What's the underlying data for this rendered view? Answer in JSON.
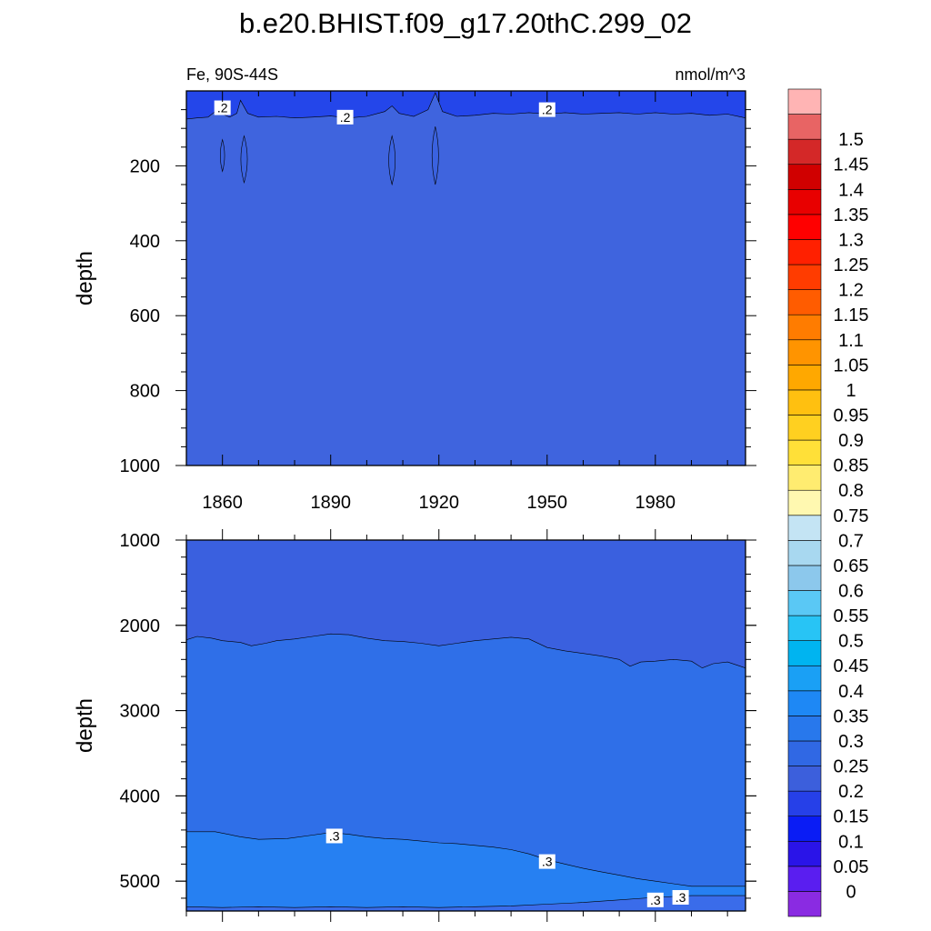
{
  "title": "b.e20.BHIST.f09_g17.20thC.299_02",
  "chart_data": [
    {
      "type": "heatmap",
      "plot": "upper",
      "left_label": "Fe, 90S-44S",
      "right_label": "nmol/m^3",
      "ylabel": "depth",
      "xlim": [
        1850,
        2005
      ],
      "ylim": [
        1000,
        0
      ],
      "yticks": [
        "200",
        "400",
        "600",
        "800",
        "1000"
      ],
      "xticks": [
        "1860",
        "1890",
        "1920",
        "1950",
        "1980"
      ],
      "surface_band": {
        "level": 0.2,
        "depth_profile": [
          {
            "x": 1850,
            "y": 75
          },
          {
            "x": 1853,
            "y": 72
          },
          {
            "x": 1856,
            "y": 70
          },
          {
            "x": 1858,
            "y": 55
          },
          {
            "x": 1860,
            "y": 62
          },
          {
            "x": 1862,
            "y": 70
          },
          {
            "x": 1864,
            "y": 60
          },
          {
            "x": 1865,
            "y": 25
          },
          {
            "x": 1867,
            "y": 60
          },
          {
            "x": 1870,
            "y": 70
          },
          {
            "x": 1875,
            "y": 68
          },
          {
            "x": 1880,
            "y": 72
          },
          {
            "x": 1885,
            "y": 70
          },
          {
            "x": 1890,
            "y": 67
          },
          {
            "x": 1895,
            "y": 72
          },
          {
            "x": 1900,
            "y": 68
          },
          {
            "x": 1905,
            "y": 55
          },
          {
            "x": 1907,
            "y": 40
          },
          {
            "x": 1909,
            "y": 60
          },
          {
            "x": 1913,
            "y": 68
          },
          {
            "x": 1917,
            "y": 50
          },
          {
            "x": 1919,
            "y": 5
          },
          {
            "x": 1921,
            "y": 55
          },
          {
            "x": 1925,
            "y": 68
          },
          {
            "x": 1930,
            "y": 65
          },
          {
            "x": 1935,
            "y": 60
          },
          {
            "x": 1940,
            "y": 62
          },
          {
            "x": 1945,
            "y": 58
          },
          {
            "x": 1950,
            "y": 62
          },
          {
            "x": 1955,
            "y": 58
          },
          {
            "x": 1960,
            "y": 62
          },
          {
            "x": 1965,
            "y": 60
          },
          {
            "x": 1970,
            "y": 58
          },
          {
            "x": 1975,
            "y": 62
          },
          {
            "x": 1980,
            "y": 58
          },
          {
            "x": 1985,
            "y": 62
          },
          {
            "x": 1990,
            "y": 60
          },
          {
            "x": 1995,
            "y": 65
          },
          {
            "x": 2000,
            "y": 62
          },
          {
            "x": 2005,
            "y": 72
          }
        ]
      },
      "lenses": [
        {
          "x": 1860,
          "top": 130,
          "bottom": 215,
          "halfwidth": 0.6
        },
        {
          "x": 1866,
          "top": 120,
          "bottom": 245,
          "halfwidth": 0.9
        },
        {
          "x": 1907,
          "top": 120,
          "bottom": 250,
          "halfwidth": 0.9
        },
        {
          "x": 1919,
          "top": 95,
          "bottom": 250,
          "halfwidth": 0.9
        }
      ],
      "labels": [
        {
          "text": ".2",
          "x": 1860,
          "y": 45
        },
        {
          "text": ".2",
          "x": 1894,
          "y": 70
        },
        {
          "text": ".2",
          "x": 1950,
          "y": 50
        }
      ]
    },
    {
      "type": "heatmap",
      "plot": "lower",
      "ylabel": "depth",
      "xlim": [
        1850,
        2005
      ],
      "ylim": [
        1000,
        5350
      ],
      "yticks": [
        "1000",
        "2000",
        "3000",
        "4000",
        "5000"
      ],
      "boundary_025": [
        {
          "x": 1850,
          "y": 2170
        },
        {
          "x": 1853,
          "y": 2130
        },
        {
          "x": 1857,
          "y": 2150
        },
        {
          "x": 1860,
          "y": 2180
        },
        {
          "x": 1865,
          "y": 2200
        },
        {
          "x": 1868,
          "y": 2240
        },
        {
          "x": 1872,
          "y": 2210
        },
        {
          "x": 1875,
          "y": 2180
        },
        {
          "x": 1880,
          "y": 2160
        },
        {
          "x": 1885,
          "y": 2130
        },
        {
          "x": 1890,
          "y": 2100
        },
        {
          "x": 1895,
          "y": 2110
        },
        {
          "x": 1900,
          "y": 2150
        },
        {
          "x": 1905,
          "y": 2180
        },
        {
          "x": 1910,
          "y": 2190
        },
        {
          "x": 1915,
          "y": 2210
        },
        {
          "x": 1920,
          "y": 2240
        },
        {
          "x": 1925,
          "y": 2210
        },
        {
          "x": 1930,
          "y": 2180
        },
        {
          "x": 1935,
          "y": 2160
        },
        {
          "x": 1940,
          "y": 2140
        },
        {
          "x": 1945,
          "y": 2160
        },
        {
          "x": 1950,
          "y": 2260
        },
        {
          "x": 1955,
          "y": 2300
        },
        {
          "x": 1960,
          "y": 2330
        },
        {
          "x": 1965,
          "y": 2360
        },
        {
          "x": 1970,
          "y": 2400
        },
        {
          "x": 1973,
          "y": 2480
        },
        {
          "x": 1976,
          "y": 2430
        },
        {
          "x": 1980,
          "y": 2420
        },
        {
          "x": 1985,
          "y": 2400
        },
        {
          "x": 1990,
          "y": 2420
        },
        {
          "x": 1993,
          "y": 2500
        },
        {
          "x": 1996,
          "y": 2450
        },
        {
          "x": 2000,
          "y": 2430
        },
        {
          "x": 2005,
          "y": 2500
        }
      ],
      "boundary_030_upper": [
        {
          "x": 1850,
          "y": 4420
        },
        {
          "x": 1858,
          "y": 4420
        },
        {
          "x": 1865,
          "y": 4480
        },
        {
          "x": 1870,
          "y": 4510
        },
        {
          "x": 1878,
          "y": 4500
        },
        {
          "x": 1885,
          "y": 4460
        },
        {
          "x": 1890,
          "y": 4430
        },
        {
          "x": 1895,
          "y": 4450
        },
        {
          "x": 1900,
          "y": 4480
        },
        {
          "x": 1905,
          "y": 4500
        },
        {
          "x": 1910,
          "y": 4510
        },
        {
          "x": 1915,
          "y": 4530
        },
        {
          "x": 1920,
          "y": 4550
        },
        {
          "x": 1925,
          "y": 4560
        },
        {
          "x": 1930,
          "y": 4580
        },
        {
          "x": 1935,
          "y": 4600
        },
        {
          "x": 1940,
          "y": 4630
        },
        {
          "x": 1945,
          "y": 4680
        },
        {
          "x": 1950,
          "y": 4750
        },
        {
          "x": 1955,
          "y": 4800
        },
        {
          "x": 1960,
          "y": 4850
        },
        {
          "x": 1965,
          "y": 4890
        },
        {
          "x": 1970,
          "y": 4930
        },
        {
          "x": 1975,
          "y": 4970
        },
        {
          "x": 1980,
          "y": 5000
        },
        {
          "x": 1985,
          "y": 5030
        },
        {
          "x": 1990,
          "y": 5060
        },
        {
          "x": 1995,
          "y": 5060
        },
        {
          "x": 2000,
          "y": 5060
        },
        {
          "x": 2005,
          "y": 5060
        }
      ],
      "boundary_030_lower": [
        {
          "x": 1850,
          "y": 5300
        },
        {
          "x": 1860,
          "y": 5310
        },
        {
          "x": 1870,
          "y": 5300
        },
        {
          "x": 1880,
          "y": 5310
        },
        {
          "x": 1890,
          "y": 5300
        },
        {
          "x": 1900,
          "y": 5310
        },
        {
          "x": 1910,
          "y": 5300
        },
        {
          "x": 1920,
          "y": 5310
        },
        {
          "x": 1930,
          "y": 5300
        },
        {
          "x": 1940,
          "y": 5290
        },
        {
          "x": 1950,
          "y": 5270
        },
        {
          "x": 1960,
          "y": 5250
        },
        {
          "x": 1970,
          "y": 5220
        },
        {
          "x": 1980,
          "y": 5190
        },
        {
          "x": 1990,
          "y": 5170
        },
        {
          "x": 2000,
          "y": 5170
        },
        {
          "x": 2005,
          "y": 5170
        }
      ],
      "labels": [
        {
          "text": ".3",
          "x": 1891,
          "y": 4470
        },
        {
          "text": ".3",
          "x": 1950,
          "y": 4770
        },
        {
          "text": ".3",
          "x": 1980,
          "y": 5220
        },
        {
          "text": ".3",
          "x": 1987,
          "y": 5190
        }
      ]
    }
  ],
  "colorbar": {
    "labels": [
      "0",
      "0.05",
      "0.1",
      "0.15",
      "0.2",
      "0.25",
      "0.3",
      "0.35",
      "0.4",
      "0.45",
      "0.5",
      "0.55",
      "0.6",
      "0.65",
      "0.7",
      "0.75",
      "0.8",
      "0.85",
      "0.9",
      "0.95",
      "1",
      "1.05",
      "1.1",
      "1.15",
      "1.2",
      "1.25",
      "1.3",
      "1.35",
      "1.4",
      "1.45",
      "1.5"
    ],
    "colors": [
      "#8a2be2",
      "#5a1ef0",
      "#2a14e8",
      "#0a1cf5",
      "#2640e8",
      "#3c5fdc",
      "#3068e4",
      "#2878ec",
      "#1e88f5",
      "#1aa0f5",
      "#00b4f0",
      "#28c4f5",
      "#5ac8f5",
      "#8cc8ec",
      "#a8d8f0",
      "#c4e4f4",
      "#fff8b0",
      "#ffec70",
      "#ffe038",
      "#ffd020",
      "#ffc010",
      "#ffa800",
      "#ff9400",
      "#ff7c00",
      "#ff5c00",
      "#ff3c00",
      "#ff2000",
      "#ff0000",
      "#e80000",
      "#d00000",
      "#d42828",
      "#e86464",
      "#ffb4b4"
    ]
  },
  "fills": {
    "upper_surface": "#2446ea",
    "upper_main": "#3f64de",
    "lower_top": "#3a60df",
    "lower_mid": "#2f6fe8",
    "lower_deep": "#2680f2",
    "lower_bottom": "#3a6cea"
  }
}
